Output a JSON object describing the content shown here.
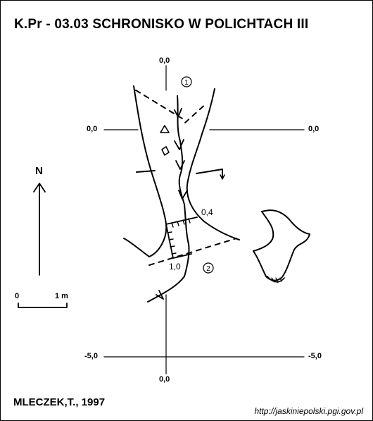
{
  "title": "K.Pr - 03.03 SCHRONISKO W POLICHTACH III",
  "author": "MLECZEK,T., 1997",
  "url": "http://jaskiniepolski.pgi.gov.pl",
  "north_label": "N",
  "scale": {
    "start": "0",
    "end": "1 m"
  },
  "grid_labels": {
    "top": "0,0",
    "left": "0,0",
    "right": "0,0",
    "bottom_left": "-5,0",
    "bottom_right": "-5,0",
    "bottom": "0,0"
  },
  "profile_labels": {
    "start": "0,4",
    "end": "1,0"
  },
  "entrances": [
    "1",
    "2"
  ]
}
